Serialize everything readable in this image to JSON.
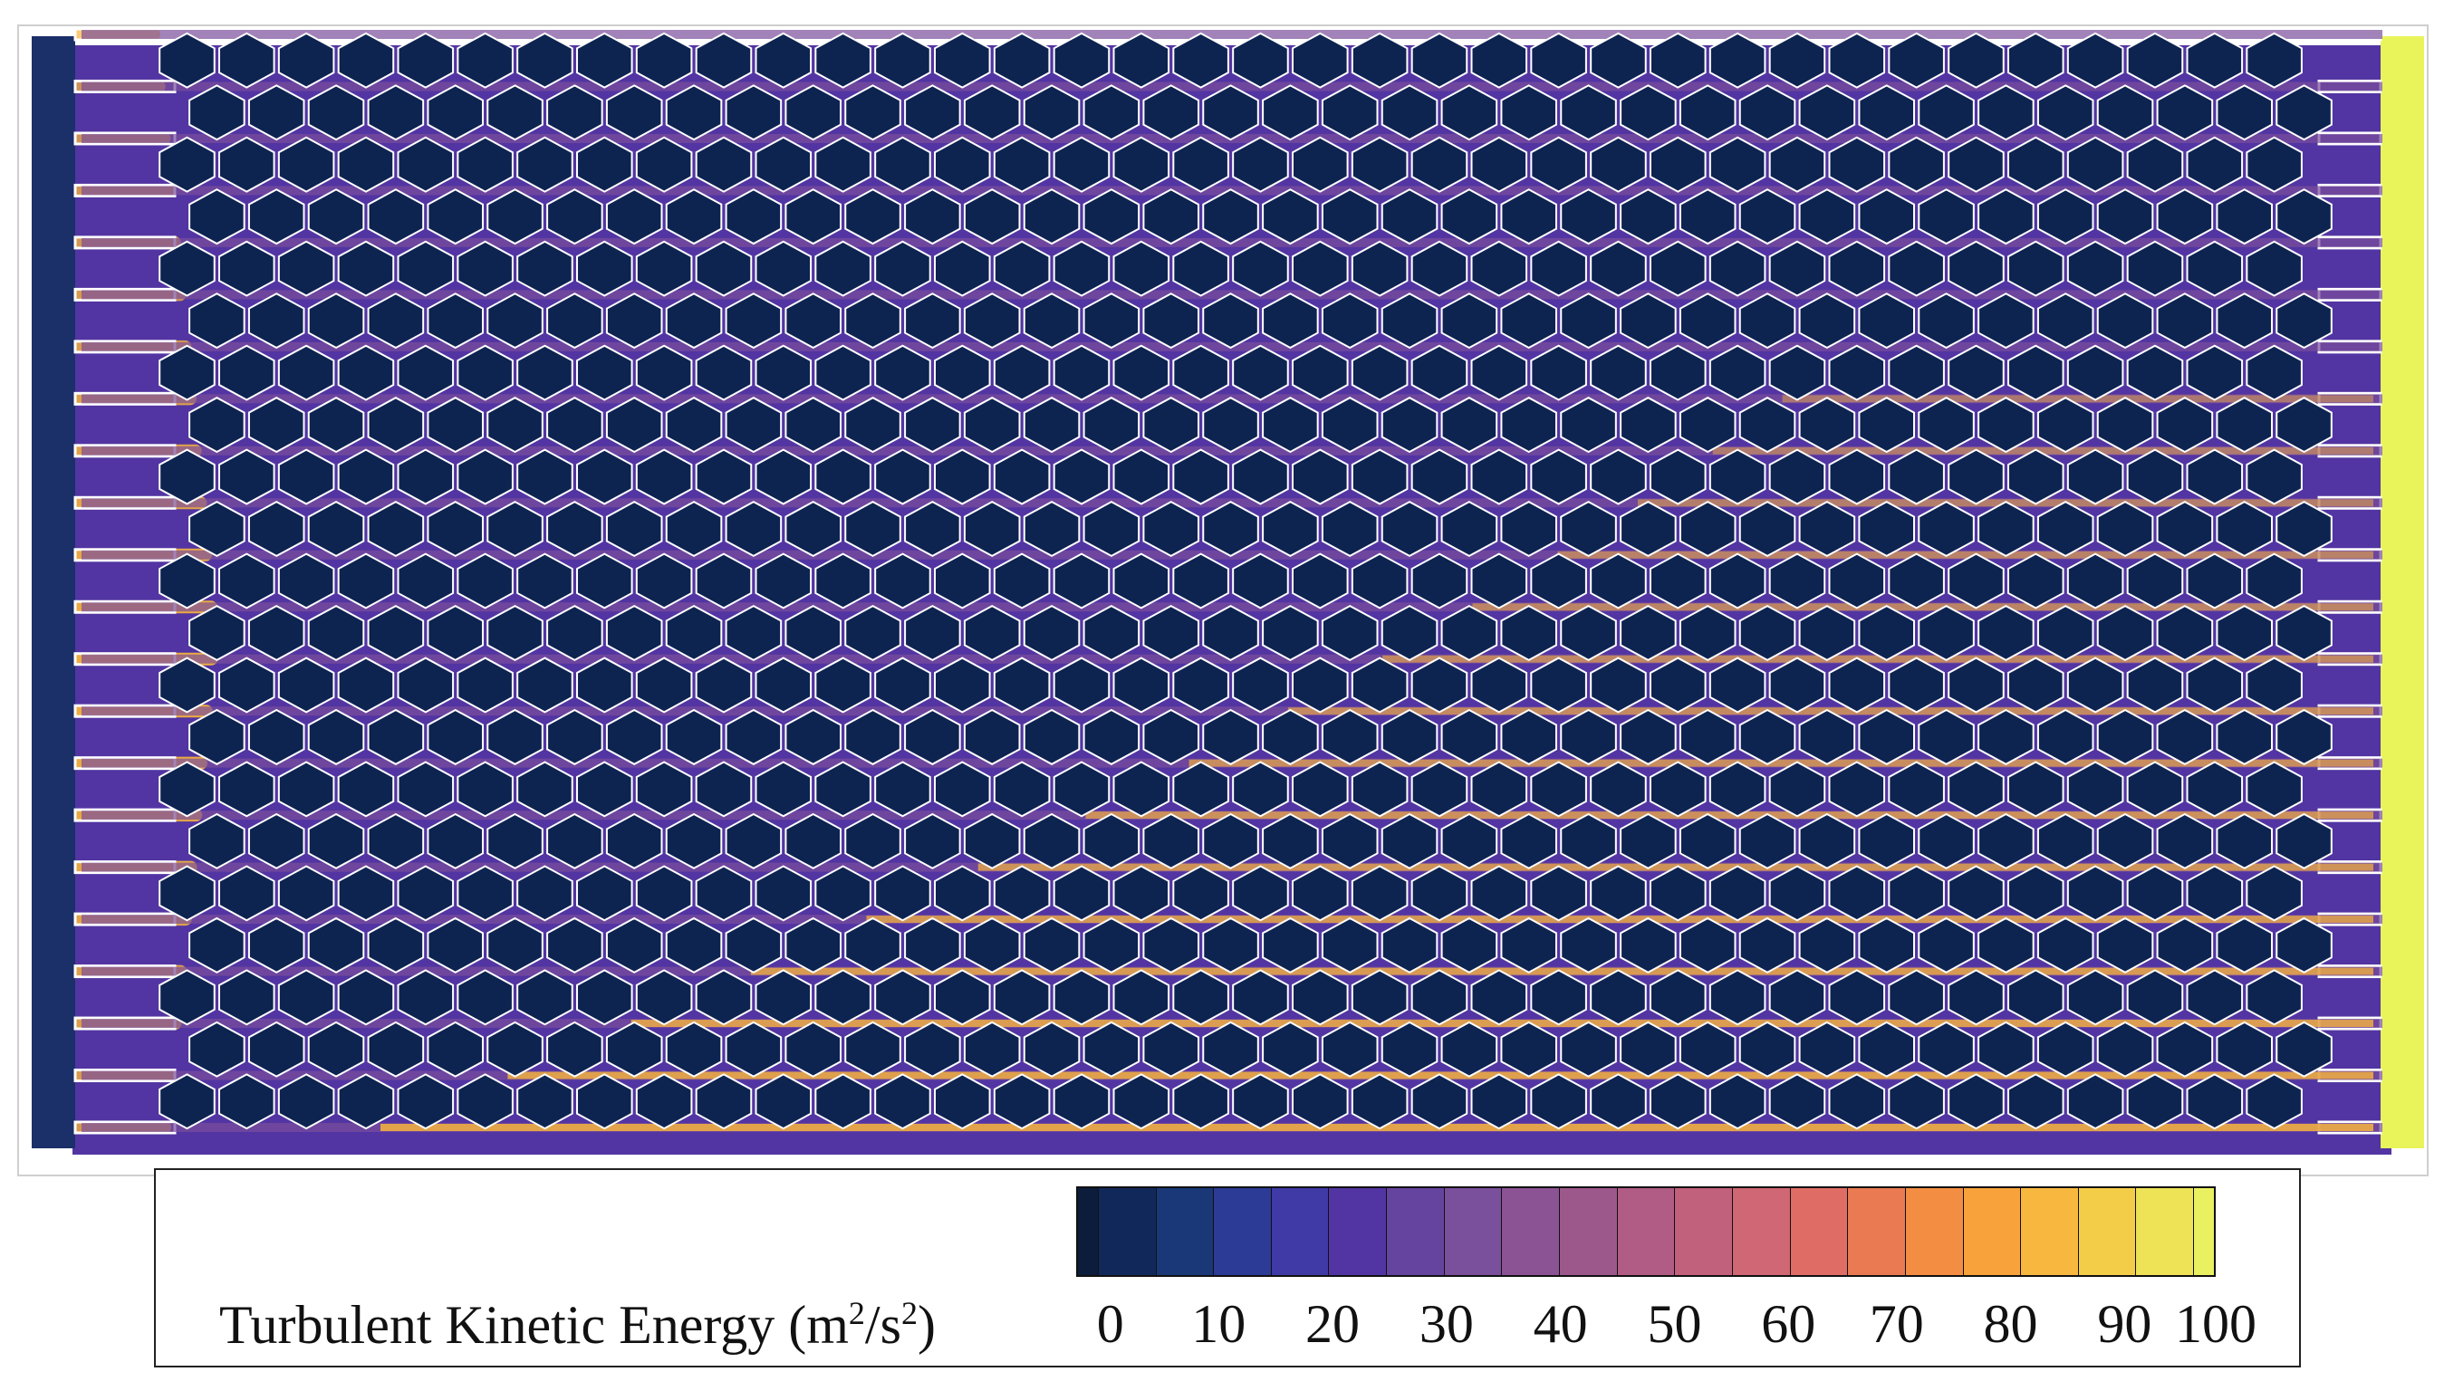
{
  "legend": {
    "title_main": "Turbulent Kinetic Energy (m",
    "title_sup1": "2",
    "title_mid": "/s",
    "title_sup2": "2",
    "title_end": ")",
    "tick_labels": [
      "0",
      "10",
      "20",
      "30",
      "40",
      "50",
      "60",
      "70",
      "80",
      "90",
      "100"
    ],
    "range": [
      0,
      100
    ],
    "levels": 21
  },
  "colormap": {
    "name": "plasma-like",
    "stops": [
      "#0b1d3a",
      "#11295a",
      "#1a3878",
      "#2b3b96",
      "#3f3aa6",
      "#5235a2",
      "#65449f",
      "#7a4f9b",
      "#8c5394",
      "#9d588b",
      "#b15c84",
      "#c2617c",
      "#d06774",
      "#df6d66",
      "#ea7a52",
      "#f28d41",
      "#f7a23a",
      "#f8b83f",
      "#f4cd48",
      "#eee257",
      "#e9f160"
    ]
  },
  "field": {
    "left_manifold_color": "#1b2f68",
    "right_manifold_color": "#e9f45a",
    "hex_fill": "#0d2350",
    "gap_color": "#5a3aa8",
    "hot_color": "#f7b43c"
  }
}
